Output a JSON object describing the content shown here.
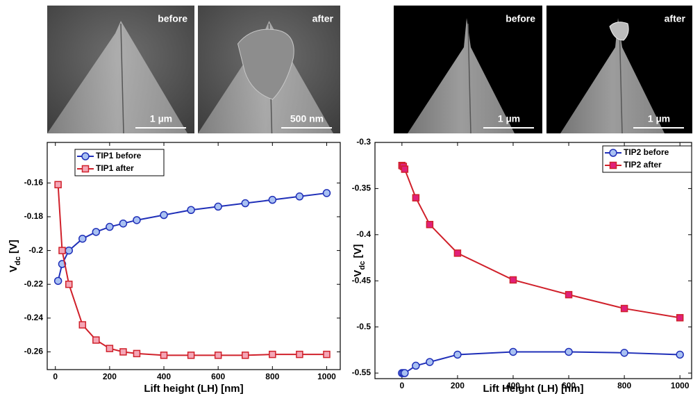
{
  "chart_data": [
    {
      "type": "line",
      "images": [
        {
          "label": "before",
          "scale": "1 µm"
        },
        {
          "label": "after",
          "scale": "500 nm"
        }
      ],
      "x_label": "Lift height (LH) [nm]",
      "y_label": [
        "V",
        "dc",
        " [V]"
      ],
      "xlim": [
        -30,
        1050
      ],
      "xticks": [
        0,
        200,
        400,
        600,
        800,
        1000
      ],
      "ylim": [
        -0.2705,
        -0.136
      ],
      "yticks": [
        -0.16,
        -0.18,
        -0.2,
        -0.22,
        -0.24,
        -0.26
      ],
      "legend": "upper left",
      "series": [
        {
          "name": "TIP1 before",
          "color": "#1f2fb8",
          "marker": "circle",
          "fill": "#a9c1f2",
          "x": [
            10,
            25,
            50,
            100,
            150,
            200,
            250,
            300,
            400,
            500,
            600,
            700,
            800,
            900,
            1000
          ],
          "values": [
            -0.218,
            -0.208,
            -0.2,
            -0.193,
            -0.189,
            -0.186,
            -0.184,
            -0.182,
            -0.179,
            -0.176,
            -0.174,
            -0.172,
            -0.17,
            -0.168,
            -0.166
          ]
        },
        {
          "name": "TIP1 after",
          "color": "#d0202a",
          "marker": "square",
          "fill": "#f4a6b6",
          "x": [
            10,
            25,
            50,
            100,
            150,
            200,
            250,
            300,
            400,
            500,
            600,
            700,
            800,
            900,
            1000
          ],
          "values": [
            -0.161,
            -0.2,
            -0.22,
            -0.244,
            -0.253,
            -0.258,
            -0.26,
            -0.261,
            -0.262,
            -0.262,
            -0.262,
            -0.262,
            -0.2615,
            -0.2615,
            -0.2615
          ]
        }
      ]
    },
    {
      "type": "line",
      "images": [
        {
          "label": "before",
          "scale": "1 µm"
        },
        {
          "label": "after",
          "scale": "1 µm"
        }
      ],
      "x_label": "Lift Height (LH) [nm]",
      "y_label": [
        "V",
        "dc",
        " [V]"
      ],
      "xlim": [
        -97,
        1042
      ],
      "xticks": [
        0,
        200,
        400,
        600,
        800,
        1000
      ],
      "ylim": [
        -0.556,
        -0.3
      ],
      "yticks": [
        -0.3,
        -0.35,
        -0.4,
        -0.45,
        -0.5,
        -0.55
      ],
      "legend": "upper right",
      "series": [
        {
          "name": "TIP2 before",
          "color": "#1f2fb8",
          "marker": "circle",
          "fill": "#a9c1f2",
          "x": [
            0,
            5,
            10,
            50,
            100,
            200,
            400,
            600,
            800,
            1000
          ],
          "values": [
            -0.55,
            -0.55,
            -0.55,
            -0.542,
            -0.538,
            -0.53,
            -0.527,
            -0.527,
            -0.528,
            -0.53
          ]
        },
        {
          "name": "TIP2 after",
          "color": "#d0202a",
          "marker": "square",
          "fill": "#e0207a",
          "x": [
            0,
            5,
            10,
            50,
            100,
            200,
            400,
            600,
            800,
            1000
          ],
          "values": [
            -0.325,
            -0.326,
            -0.329,
            -0.36,
            -0.389,
            -0.42,
            -0.449,
            -0.465,
            -0.48,
            -0.49
          ]
        }
      ]
    }
  ]
}
